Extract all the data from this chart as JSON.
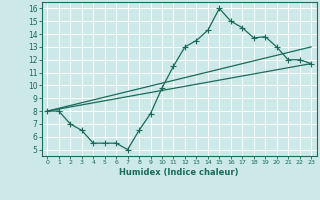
{
  "title": "",
  "xlabel": "Humidex (Indice chaleur)",
  "bg_color": "#cce8e8",
  "grid_color": "#ffffff",
  "line_color": "#1a6b5a",
  "xlim": [
    -0.5,
    23.5
  ],
  "ylim": [
    4.5,
    16.5
  ],
  "xticks": [
    0,
    1,
    2,
    3,
    4,
    5,
    6,
    7,
    8,
    9,
    10,
    11,
    12,
    13,
    14,
    15,
    16,
    17,
    18,
    19,
    20,
    21,
    22,
    23
  ],
  "yticks": [
    5,
    6,
    7,
    8,
    9,
    10,
    11,
    12,
    13,
    14,
    15,
    16
  ],
  "line1_x": [
    0,
    1,
    2,
    3,
    4,
    5,
    6,
    7,
    8,
    9,
    10,
    11,
    12,
    13,
    14,
    15,
    16,
    17,
    18,
    19,
    20,
    21,
    22,
    23
  ],
  "line1_y": [
    8.0,
    8.0,
    7.0,
    6.5,
    5.5,
    5.5,
    5.5,
    5.0,
    6.5,
    7.8,
    9.8,
    11.5,
    13.0,
    13.5,
    14.3,
    16.0,
    15.0,
    14.5,
    13.7,
    13.8,
    13.0,
    12.0,
    12.0,
    11.7
  ],
  "line2_x": [
    0,
    23
  ],
  "line2_y": [
    8.0,
    11.7
  ],
  "line3_x": [
    0,
    23
  ],
  "line3_y": [
    8.0,
    13.0
  ],
  "marker_size": 2.5,
  "linewidth": 0.9
}
